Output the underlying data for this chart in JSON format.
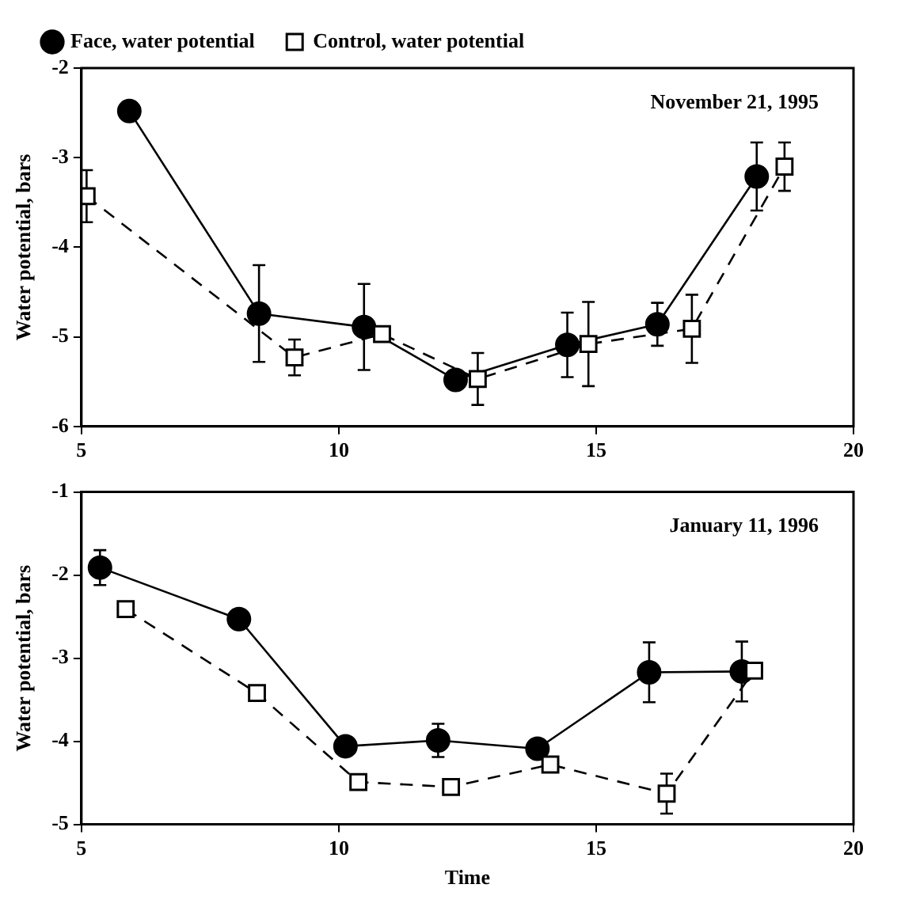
{
  "chart_data": [
    {
      "type": "line",
      "ylabel": "Water potential, bars",
      "annotations": [
        "November 21, 1995"
      ],
      "legend": "top",
      "grid": false,
      "xlim": [
        5,
        20
      ],
      "xticks": [
        5,
        10,
        15,
        20
      ],
      "ylim": [
        -6,
        -2
      ],
      "yticks": [
        -6,
        -5,
        -4,
        -3,
        -2
      ],
      "series": [
        {
          "name": "Face, water potential",
          "color": "#000000",
          "marker": "circle",
          "line_style": "solid",
          "x": [
            5.93,
            8.45,
            10.49,
            12.27,
            14.44,
            16.19,
            18.12
          ],
          "values": [
            -2.48,
            -4.74,
            -4.89,
            -5.48,
            -5.09,
            -4.86,
            -3.21
          ],
          "errors": [
            null,
            0.54,
            0.48,
            null,
            0.36,
            0.24,
            0.38
          ]
        },
        {
          "name": "Control, water potential",
          "color": "#000000",
          "marker": "square",
          "line_style": "dashed",
          "x": [
            5.1,
            9.14,
            10.84,
            12.7,
            14.85,
            16.86,
            18.66
          ],
          "values": [
            -3.43,
            -5.23,
            -4.97,
            -5.47,
            -5.08,
            -4.91,
            -3.1
          ],
          "errors": [
            0.29,
            0.2,
            null,
            0.29,
            0.47,
            0.38,
            0.27
          ]
        }
      ]
    },
    {
      "type": "line",
      "xlabel": "Time",
      "ylabel": "Water potential, bars",
      "annotations": [
        "January 11, 1996"
      ],
      "grid": false,
      "xlim": [
        5,
        20
      ],
      "xticks": [
        5,
        10,
        15,
        20
      ],
      "ylim": [
        -5,
        -1
      ],
      "yticks": [
        -5,
        -4,
        -3,
        -2,
        -1
      ],
      "series": [
        {
          "color": "#000000",
          "marker": "circle",
          "line_style": "solid",
          "x": [
            5.36,
            8.06,
            10.13,
            11.93,
            13.86,
            16.03,
            17.83
          ],
          "values": [
            -1.91,
            -2.53,
            -4.06,
            -3.99,
            -4.09,
            -3.17,
            -3.16
          ],
          "errors": [
            0.21,
            null,
            null,
            0.2,
            null,
            0.36,
            0.36
          ]
        },
        {
          "color": "#000000",
          "marker": "square",
          "line_style": "dashed",
          "x": [
            5.86,
            8.41,
            10.38,
            12.18,
            14.11,
            16.37,
            18.07
          ],
          "values": [
            -2.41,
            -3.42,
            -4.49,
            -4.55,
            -4.28,
            -4.63,
            -3.15
          ],
          "errors": [
            null,
            null,
            null,
            null,
            null,
            0.24,
            null
          ]
        }
      ]
    }
  ]
}
